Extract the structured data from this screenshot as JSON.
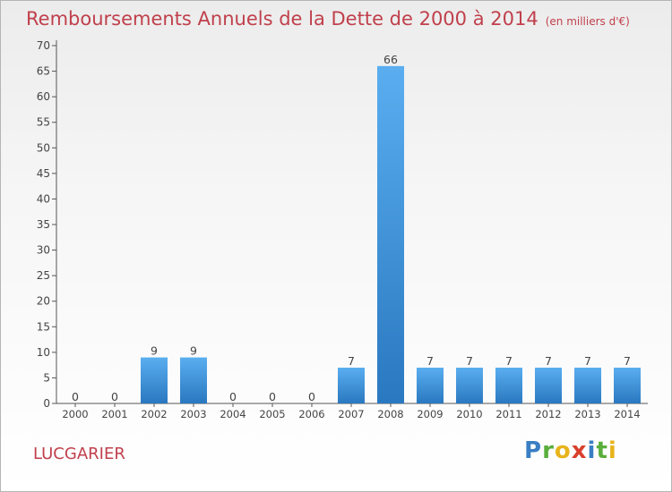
{
  "title": "Remboursements Annuels de la Dette de 2000 à 2014",
  "unit": "(en milliers d'€)",
  "commune": "LUCGARIER",
  "logo": {
    "letters": [
      {
        "ch": "P",
        "color": "#3a7fc4"
      },
      {
        "ch": "r",
        "color": "#5aae3c"
      },
      {
        "ch": "o",
        "color": "#e8b41c"
      },
      {
        "ch": "x",
        "color": "#d8402c"
      },
      {
        "ch": "i",
        "color": "#3a7fc4"
      },
      {
        "ch": "t",
        "color": "#5aae3c"
      },
      {
        "ch": "i",
        "color": "#e8b41c"
      }
    ]
  },
  "chart_data": {
    "type": "bar",
    "categories": [
      "2000",
      "2001",
      "2002",
      "2003",
      "2004",
      "2005",
      "2006",
      "2007",
      "2008",
      "2009",
      "2010",
      "2011",
      "2012",
      "2013",
      "2014"
    ],
    "values": [
      0,
      0,
      9,
      9,
      0,
      0,
      0,
      7,
      66,
      7,
      7,
      7,
      7,
      7,
      7
    ],
    "ylim": [
      0,
      70
    ],
    "yticks": [
      0,
      5,
      10,
      15,
      20,
      25,
      30,
      35,
      40,
      45,
      50,
      55,
      60,
      65,
      70
    ],
    "grid": false,
    "bar_color": "#3d8fd6"
  }
}
